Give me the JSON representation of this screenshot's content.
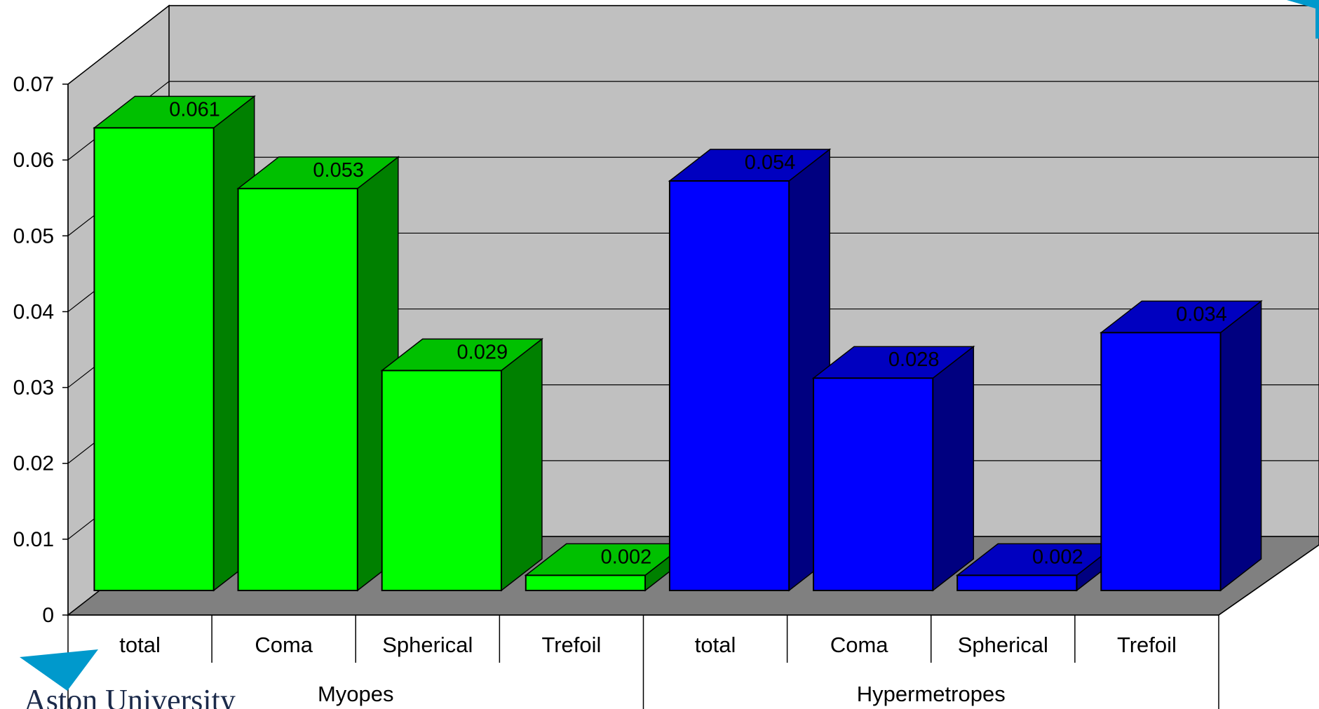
{
  "chart_data": {
    "type": "bar",
    "style": "3d-clustered",
    "title": "",
    "xlabel": "",
    "ylabel": "",
    "ylim": [
      0,
      0.07
    ],
    "yticks": [
      "0",
      "0.01",
      "0.02",
      "0.03",
      "0.04",
      "0.05",
      "0.06",
      "0.07"
    ],
    "grid": true,
    "groups": [
      {
        "name": "Myopes",
        "color": "#00ff00",
        "color_side": "#008000",
        "color_top": "#00c000",
        "categories": [
          "total",
          "Coma",
          "Spherical",
          "Trefoil"
        ],
        "values": [
          0.061,
          0.053,
          0.029,
          0.002
        ],
        "labels": [
          "0.061",
          "0.053",
          "0.029",
          "0.002"
        ]
      },
      {
        "name": "Hypermetropes",
        "color": "#0000ff",
        "color_side": "#000080",
        "color_top": "#0000c0",
        "categories": [
          "total",
          "Coma",
          "Spherical",
          "Trefoil"
        ],
        "values": [
          0.054,
          0.028,
          0.002,
          0.034
        ],
        "labels": [
          "0.054",
          "0.028",
          "0.002",
          "0.034"
        ]
      }
    ]
  },
  "logo": {
    "text": "Aston University",
    "color": "#0099cc"
  }
}
